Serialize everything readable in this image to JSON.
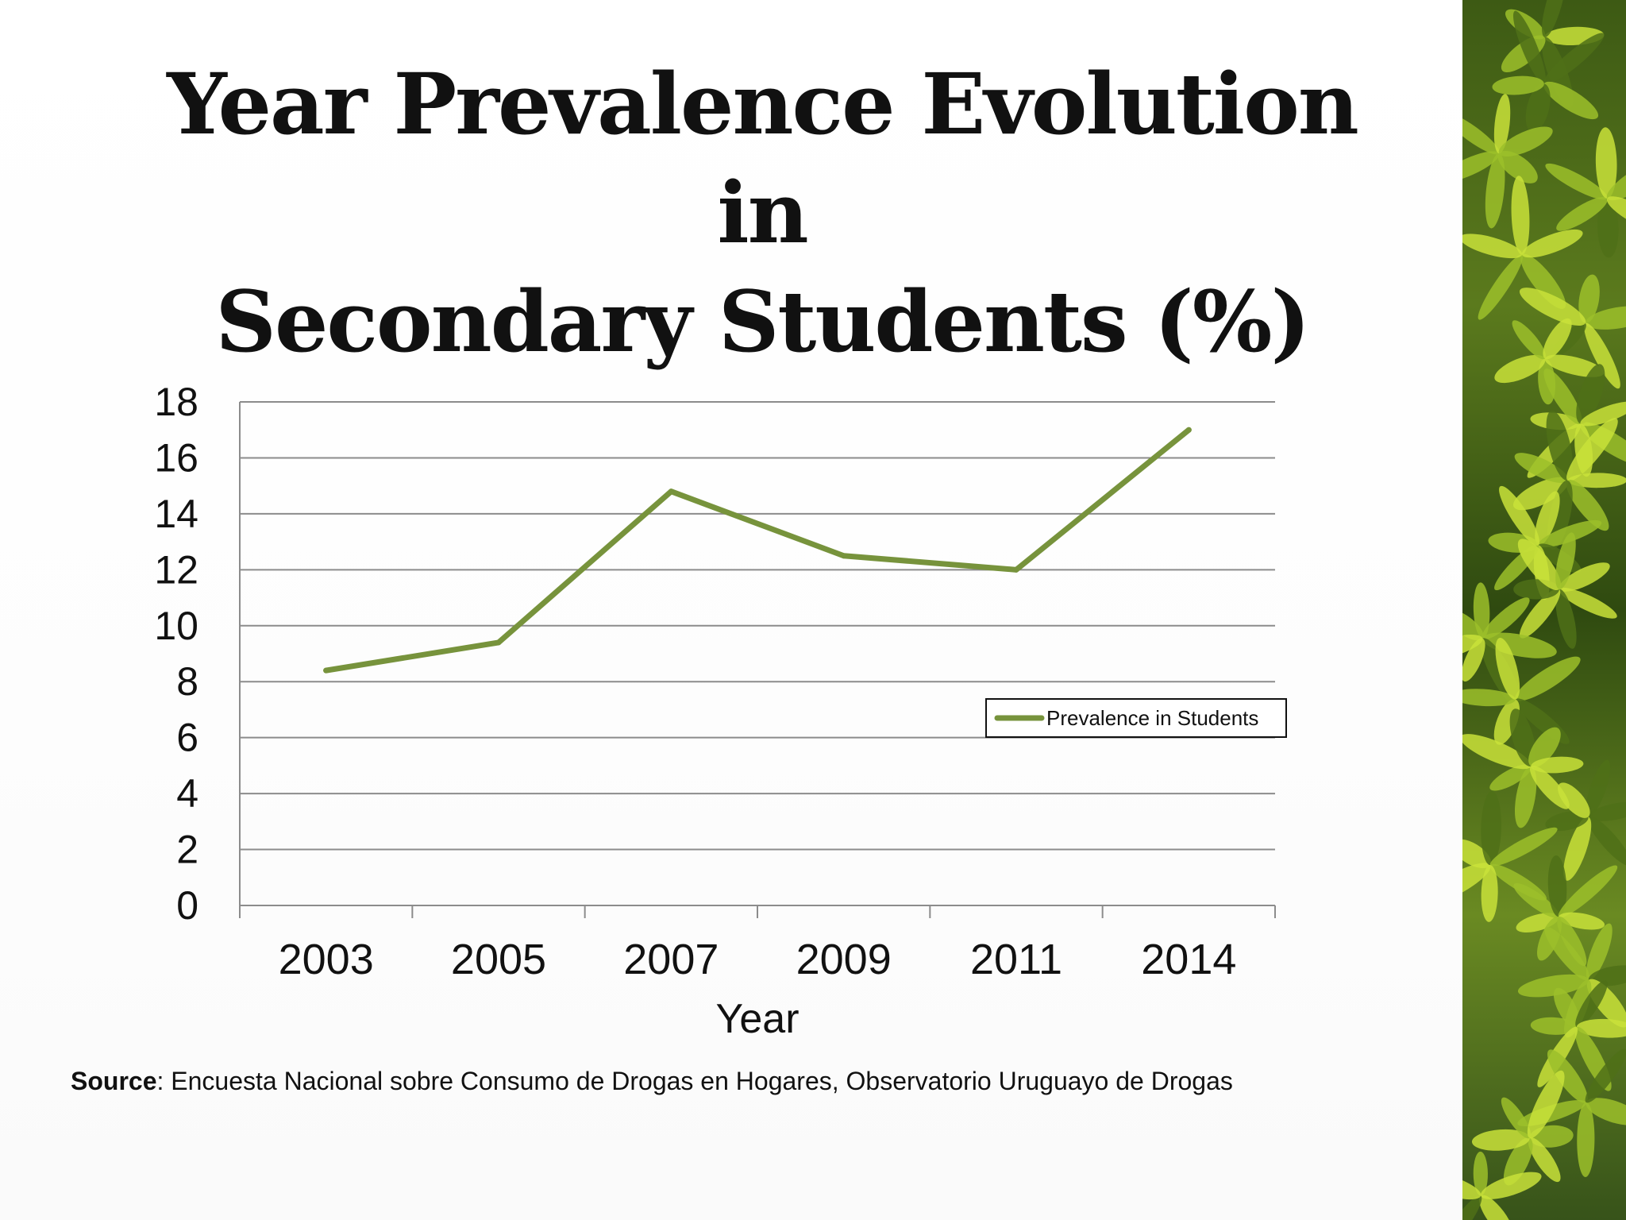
{
  "title_line1": "Year Prevalence Evolution in",
  "title_line2": "Secondary Students (%)",
  "source_label": "Source",
  "source_text": ": Encuesta Nacional sobre Consumo de Drogas en Hogares, Observatorio Uruguayo de Drogas",
  "colors": {
    "series": "#77933c",
    "grid": "#8c8c8c",
    "text": "#111111",
    "leaf_light": "#c9e23a",
    "leaf_mid": "#9cc02a",
    "leaf_dark": "#4f7018"
  },
  "chart_data": {
    "type": "line",
    "title": "",
    "xlabel": "Year",
    "ylabel": "",
    "categories": [
      "2003",
      "2005",
      "2007",
      "2009",
      "2011",
      "2014"
    ],
    "series": [
      {
        "name": "Prevalence in Students",
        "values": [
          8.4,
          9.4,
          14.8,
          12.5,
          12.0,
          17.0
        ]
      }
    ],
    "ylim": [
      0,
      18
    ],
    "yticks": [
      0,
      2,
      4,
      6,
      8,
      10,
      12,
      14,
      16,
      18
    ],
    "grid": true,
    "legend": "right"
  }
}
